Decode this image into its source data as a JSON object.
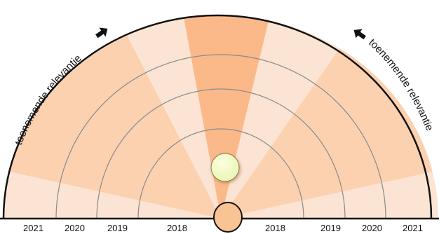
{
  "relevance_label": "toenemende relevantie",
  "year_labels_left": [
    "2021",
    "2020",
    "2019",
    "2018"
  ],
  "year_labels_right": [
    "2018",
    "2019",
    "2020",
    "2021"
  ],
  "colors": {
    "sector_light": "#fbe4d3",
    "sector_mid": "#fcd1b0",
    "sector_strong": "#fbb98a",
    "ring_line": "#8a8a8a",
    "outline": "#111111",
    "center_circle": "#f9c393",
    "dot_fill": "#f3fbc6"
  },
  "icons": [
    "arrow-icon"
  ]
}
